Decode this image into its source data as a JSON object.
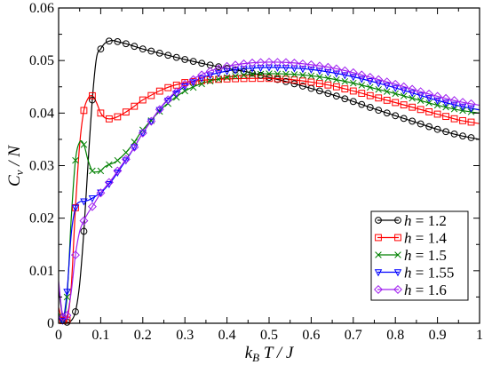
{
  "chart_data": {
    "type": "line",
    "title": "",
    "xlabel": "k_B T / J",
    "ylabel": "C_v / N",
    "xlim": [
      0,
      1
    ],
    "ylim": [
      0,
      0.06
    ],
    "xticks": [
      0,
      0.1,
      0.2,
      0.3,
      0.4,
      0.5,
      0.6,
      0.7,
      0.8,
      0.9,
      1
    ],
    "xtick_labels": [
      "0",
      "0.1",
      "0.2",
      "0.3",
      "0.4",
      "0.5",
      "0.6",
      "0.7",
      "0.8",
      "0.9",
      "1"
    ],
    "yticks": [
      0,
      0.01,
      0.02,
      0.03,
      0.04,
      0.05,
      0.06
    ],
    "ytick_labels": [
      "0",
      "0.01",
      "0.02",
      "0.03",
      "0.04",
      "0.05",
      "0.06"
    ],
    "grid": false,
    "legend_position": "bottom-right",
    "series": [
      {
        "name": "h = 1.2",
        "label_prefix": "h",
        "label_value": " = 1.2",
        "color": "#000000",
        "marker": "circle",
        "x": [
          0,
          0.01,
          0.02,
          0.03,
          0.04,
          0.05,
          0.06,
          0.07,
          0.08,
          0.09,
          0.1,
          0.11,
          0.12,
          0.13,
          0.14,
          0.16,
          0.18,
          0.2,
          0.25,
          0.3,
          0.35,
          0.4,
          0.45,
          0.5,
          0.55,
          0.6,
          0.65,
          0.7,
          0.75,
          0.8,
          0.85,
          0.9,
          0.95,
          1.0
        ],
        "y": [
          0.0065,
          0.0012,
          0.0002,
          0.0005,
          0.0022,
          0.0075,
          0.0175,
          0.0305,
          0.0425,
          0.0505,
          0.0522,
          0.0533,
          0.0537,
          0.0538,
          0.0536,
          0.0532,
          0.0527,
          0.0522,
          0.0512,
          0.0502,
          0.0493,
          0.0485,
          0.0478,
          0.0468,
          0.0458,
          0.0447,
          0.0435,
          0.0422,
          0.0408,
          0.0395,
          0.0382,
          0.0369,
          0.0358,
          0.035
        ],
        "markers_x": [
          0.01,
          0.02,
          0.04,
          0.06,
          0.08,
          0.1,
          0.12,
          0.14,
          0.16,
          0.18,
          0.2,
          0.22,
          0.24,
          0.26,
          0.28,
          0.3,
          0.32,
          0.34,
          0.36,
          0.38,
          0.4,
          0.42,
          0.44,
          0.46,
          0.48,
          0.5,
          0.52,
          0.54,
          0.56,
          0.58,
          0.6,
          0.62,
          0.64,
          0.66,
          0.68,
          0.7,
          0.72,
          0.74,
          0.76,
          0.78,
          0.8,
          0.82,
          0.84,
          0.86,
          0.88,
          0.9,
          0.92,
          0.94,
          0.96,
          0.98
        ]
      },
      {
        "name": "h = 1.4",
        "label_prefix": "h",
        "label_value": " = 1.4",
        "color": "#ff0000",
        "marker": "square",
        "x": [
          0,
          0.01,
          0.02,
          0.03,
          0.04,
          0.05,
          0.06,
          0.07,
          0.08,
          0.09,
          0.1,
          0.11,
          0.12,
          0.13,
          0.14,
          0.16,
          0.18,
          0.2,
          0.25,
          0.3,
          0.35,
          0.4,
          0.45,
          0.5,
          0.55,
          0.6,
          0.65,
          0.7,
          0.75,
          0.8,
          0.85,
          0.9,
          0.95,
          1.0
        ],
        "y": [
          0.003,
          0.0005,
          0.0006,
          0.007,
          0.022,
          0.034,
          0.0405,
          0.0428,
          0.0433,
          0.042,
          0.04,
          0.0391,
          0.0389,
          0.039,
          0.0393,
          0.0402,
          0.0413,
          0.0425,
          0.0446,
          0.0458,
          0.0463,
          0.0465,
          0.0466,
          0.0466,
          0.0464,
          0.0459,
          0.0452,
          0.0442,
          0.0431,
          0.042,
          0.0409,
          0.0398,
          0.0387,
          0.038
        ],
        "markers_x": [
          0.01,
          0.02,
          0.04,
          0.06,
          0.08,
          0.1,
          0.12,
          0.14,
          0.16,
          0.18,
          0.2,
          0.22,
          0.24,
          0.26,
          0.28,
          0.3,
          0.32,
          0.34,
          0.36,
          0.38,
          0.4,
          0.42,
          0.44,
          0.46,
          0.48,
          0.5,
          0.52,
          0.54,
          0.56,
          0.58,
          0.6,
          0.62,
          0.64,
          0.66,
          0.68,
          0.7,
          0.72,
          0.74,
          0.76,
          0.78,
          0.8,
          0.82,
          0.84,
          0.86,
          0.88,
          0.9,
          0.92,
          0.94,
          0.96,
          0.98
        ]
      },
      {
        "name": "h = 1.5",
        "label_prefix": "h",
        "label_value": " = 1.5",
        "color": "#008000",
        "marker": "x",
        "x": [
          0,
          0.01,
          0.02,
          0.03,
          0.04,
          0.05,
          0.06,
          0.07,
          0.08,
          0.09,
          0.1,
          0.11,
          0.12,
          0.13,
          0.14,
          0.16,
          0.18,
          0.2,
          0.25,
          0.3,
          0.35,
          0.4,
          0.45,
          0.5,
          0.55,
          0.6,
          0.65,
          0.7,
          0.75,
          0.8,
          0.85,
          0.9,
          0.95,
          1.0
        ],
        "y": [
          0.002,
          0.0005,
          0.005,
          0.02,
          0.031,
          0.0345,
          0.034,
          0.031,
          0.029,
          0.0288,
          0.029,
          0.0298,
          0.0302,
          0.0305,
          0.031,
          0.0325,
          0.0345,
          0.0368,
          0.0412,
          0.0442,
          0.0459,
          0.0468,
          0.0473,
          0.0475,
          0.0474,
          0.0471,
          0.0465,
          0.0457,
          0.0447,
          0.0437,
          0.0426,
          0.0415,
          0.0406,
          0.04
        ],
        "markers_x": [
          0.01,
          0.02,
          0.04,
          0.06,
          0.08,
          0.1,
          0.12,
          0.14,
          0.16,
          0.18,
          0.2,
          0.22,
          0.24,
          0.26,
          0.28,
          0.3,
          0.32,
          0.34,
          0.36,
          0.38,
          0.4,
          0.42,
          0.44,
          0.46,
          0.48,
          0.5,
          0.52,
          0.54,
          0.56,
          0.58,
          0.6,
          0.62,
          0.64,
          0.66,
          0.68,
          0.7,
          0.72,
          0.74,
          0.76,
          0.78,
          0.8,
          0.82,
          0.84,
          0.86,
          0.88,
          0.9,
          0.92,
          0.94,
          0.96,
          0.98
        ]
      },
      {
        "name": "h = 1.55",
        "label_prefix": "h",
        "label_value": " = 1.55",
        "color": "#0000ff",
        "marker": "triangle-down",
        "x": [
          0,
          0.01,
          0.02,
          0.03,
          0.04,
          0.05,
          0.06,
          0.07,
          0.08,
          0.09,
          0.1,
          0.11,
          0.12,
          0.13,
          0.14,
          0.16,
          0.18,
          0.2,
          0.25,
          0.3,
          0.35,
          0.4,
          0.45,
          0.5,
          0.55,
          0.6,
          0.65,
          0.7,
          0.75,
          0.8,
          0.85,
          0.9,
          0.95,
          1.0
        ],
        "y": [
          0.001,
          0.0005,
          0.006,
          0.017,
          0.022,
          0.0231,
          0.0232,
          0.0234,
          0.0238,
          0.0243,
          0.0249,
          0.0256,
          0.0265,
          0.0275,
          0.0287,
          0.031,
          0.0335,
          0.0362,
          0.0417,
          0.0451,
          0.047,
          0.048,
          0.0485,
          0.0487,
          0.0486,
          0.0483,
          0.0477,
          0.0469,
          0.0459,
          0.0448,
          0.0436,
          0.0424,
          0.0414,
          0.0406
        ],
        "markers_x": [
          0.01,
          0.02,
          0.04,
          0.06,
          0.08,
          0.1,
          0.12,
          0.14,
          0.16,
          0.18,
          0.2,
          0.22,
          0.24,
          0.26,
          0.28,
          0.3,
          0.32,
          0.34,
          0.36,
          0.38,
          0.4,
          0.42,
          0.44,
          0.46,
          0.48,
          0.5,
          0.52,
          0.54,
          0.56,
          0.58,
          0.6,
          0.62,
          0.64,
          0.66,
          0.68,
          0.7,
          0.72,
          0.74,
          0.76,
          0.78,
          0.8,
          0.82,
          0.84,
          0.86,
          0.88,
          0.9,
          0.92,
          0.94,
          0.96,
          0.98
        ]
      },
      {
        "name": "h = 1.6",
        "label_prefix": "h",
        "label_value": " = 1.6",
        "color": "#a020f0",
        "marker": "diamond",
        "x": [
          0,
          0.01,
          0.02,
          0.03,
          0.04,
          0.05,
          0.06,
          0.07,
          0.08,
          0.09,
          0.1,
          0.11,
          0.12,
          0.13,
          0.14,
          0.16,
          0.18,
          0.2,
          0.25,
          0.3,
          0.35,
          0.4,
          0.45,
          0.5,
          0.55,
          0.6,
          0.65,
          0.7,
          0.75,
          0.8,
          0.85,
          0.9,
          0.95,
          1.0
        ],
        "y": [
          0.008,
          0.0012,
          0.0015,
          0.006,
          0.013,
          0.0175,
          0.0195,
          0.021,
          0.0222,
          0.0235,
          0.0248,
          0.0258,
          0.0268,
          0.0278,
          0.029,
          0.0312,
          0.0335,
          0.0362,
          0.0418,
          0.0455,
          0.0477,
          0.0489,
          0.0495,
          0.0497,
          0.0496,
          0.0492,
          0.0486,
          0.0477,
          0.0466,
          0.0455,
          0.0443,
          0.0432,
          0.0422,
          0.0415
        ],
        "markers_x": [
          0.01,
          0.02,
          0.04,
          0.06,
          0.08,
          0.1,
          0.12,
          0.14,
          0.16,
          0.18,
          0.2,
          0.22,
          0.24,
          0.26,
          0.28,
          0.3,
          0.32,
          0.34,
          0.36,
          0.38,
          0.4,
          0.42,
          0.44,
          0.46,
          0.48,
          0.5,
          0.52,
          0.54,
          0.56,
          0.58,
          0.6,
          0.62,
          0.64,
          0.66,
          0.68,
          0.7,
          0.72,
          0.74,
          0.76,
          0.78,
          0.8,
          0.82,
          0.84,
          0.86,
          0.88,
          0.9,
          0.92,
          0.94,
          0.96,
          0.98
        ]
      }
    ]
  }
}
